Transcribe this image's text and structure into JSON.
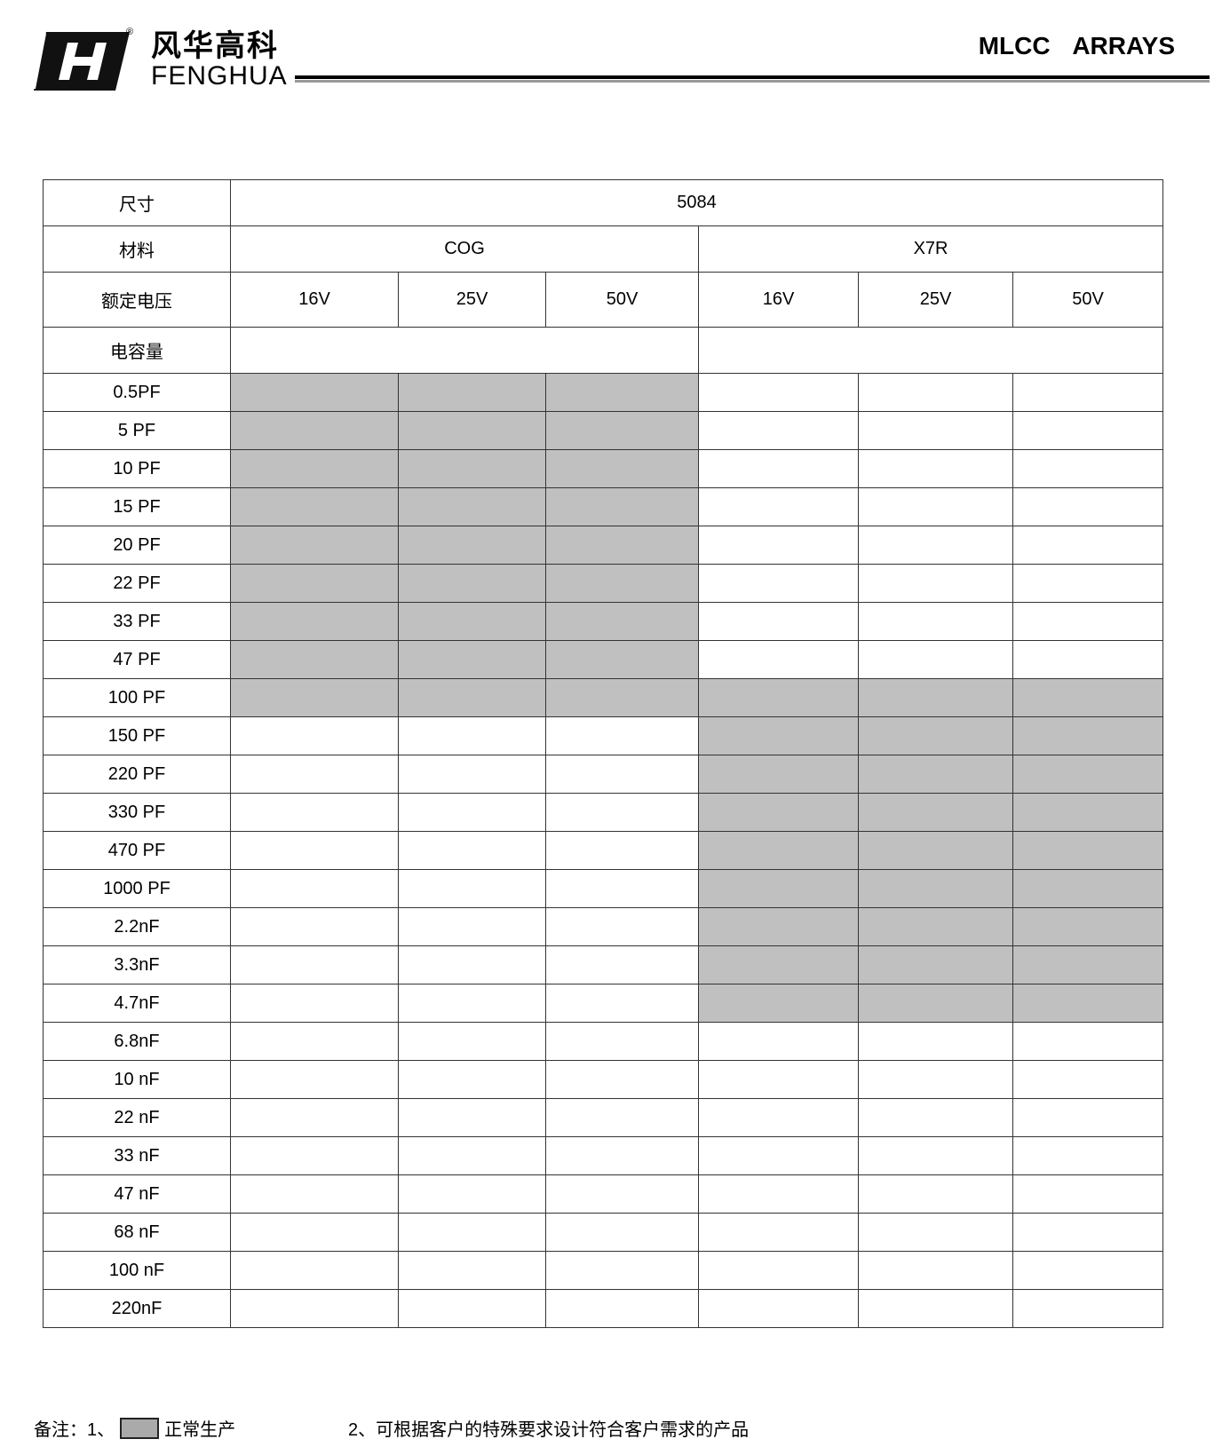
{
  "header": {
    "brand_cn": "风华高科",
    "brand_en": "FENGHUA",
    "registered": "®",
    "title": "MLCC ARRAYS"
  },
  "table": {
    "size_label": "尺寸",
    "size_value": "5084",
    "material_label": "材料",
    "materials": [
      "COG",
      "X7R"
    ],
    "voltage_label": "额定电压",
    "voltages": [
      "16V",
      "25V",
      "50V",
      "16V",
      "25V",
      "50V"
    ],
    "capacitance_label": "电容量",
    "rows": [
      "0.5PF",
      "5 PF",
      "10 PF",
      "15 PF",
      "20 PF",
      "22 PF",
      "33 PF",
      "47 PF",
      "100 PF",
      "150 PF",
      "220 PF",
      "330 PF",
      "470 PF",
      "1000 PF",
      "2.2nF",
      "3.3nF",
      "4.7nF",
      "6.8nF",
      "10 nF",
      "22 nF",
      "33 nF",
      "47 nF",
      "68 nF",
      "100 nF",
      "220nF"
    ],
    "availability": {
      "COG": [
        "0.5PF",
        "5 PF",
        "10 PF",
        "15 PF",
        "20 PF",
        "22 PF",
        "33 PF",
        "47 PF",
        "100 PF"
      ],
      "X7R": [
        "100 PF",
        "150 PF",
        "220 PF",
        "330 PF",
        "470 PF",
        "1000 PF",
        "2.2nF",
        "3.3nF",
        "4.7nF"
      ]
    },
    "shade_color": "#c0c0c0"
  },
  "notes": {
    "prefix": "备注：1、",
    "item1": "正常生产",
    "item2": "2、可根据客户的特殊要求设计符合客户需求的产品"
  }
}
